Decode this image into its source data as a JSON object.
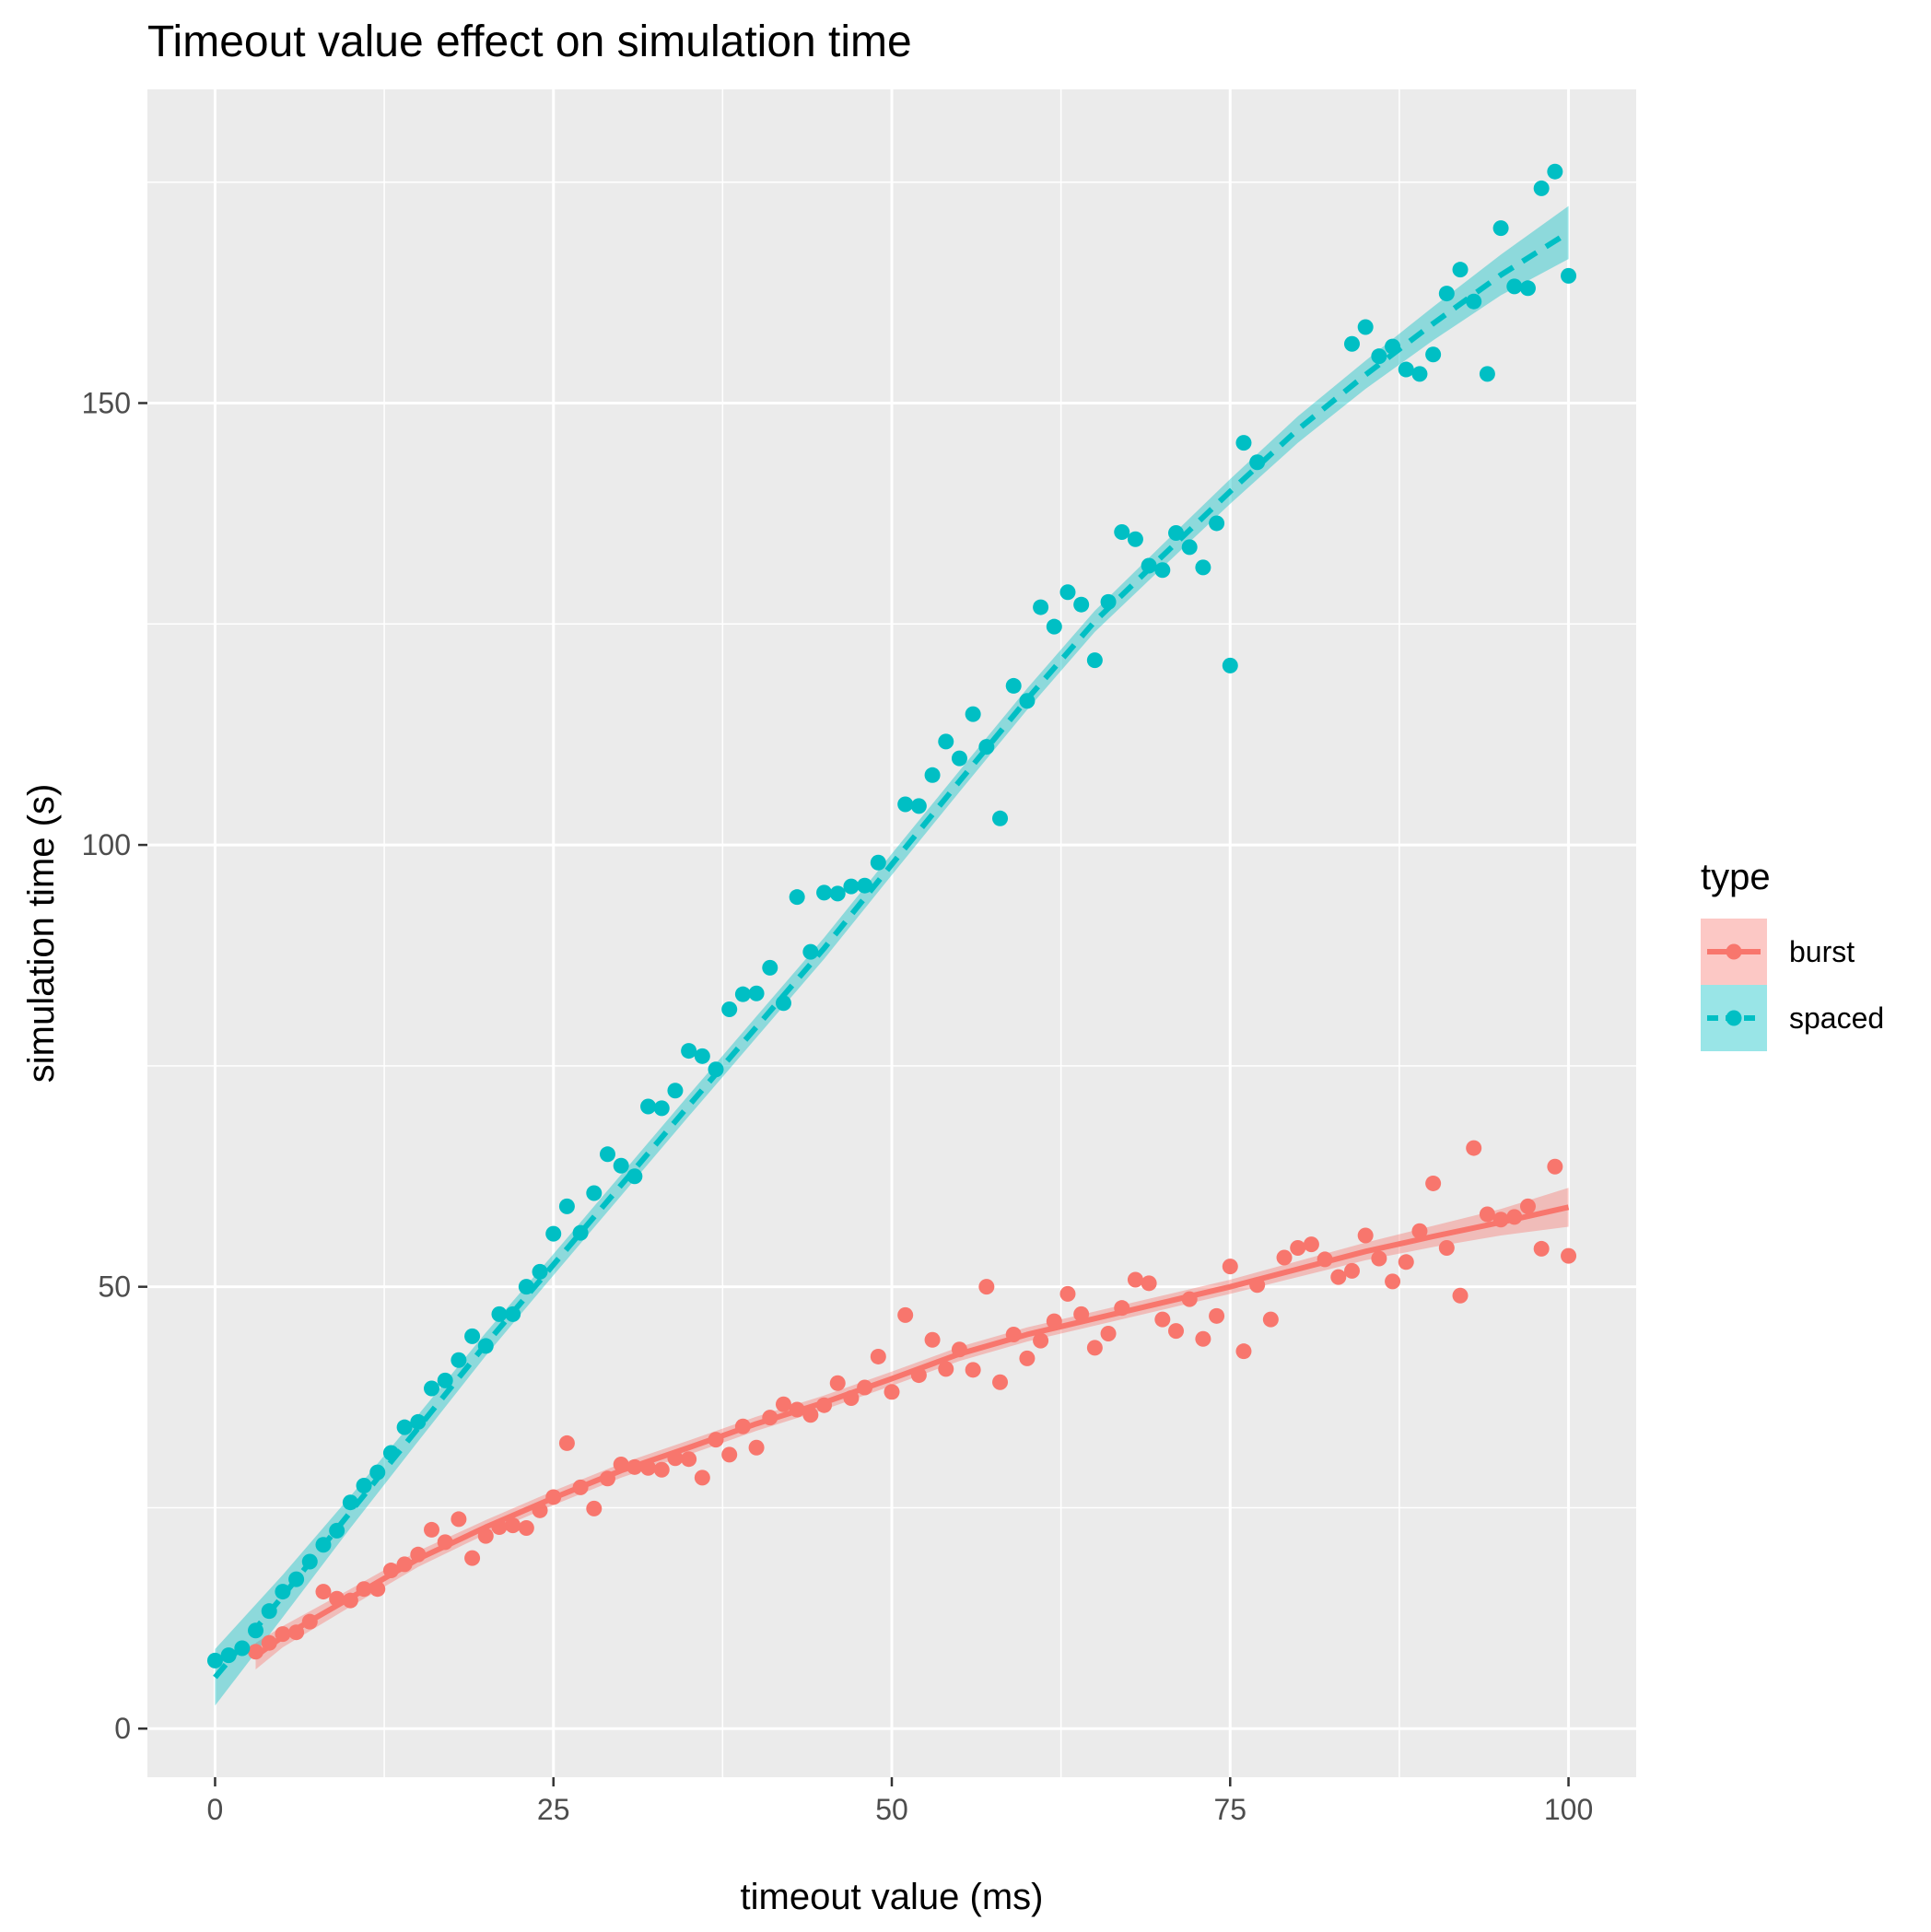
{
  "chart_data": {
    "type": "scatter",
    "title": "Timeout value effect on simulation time",
    "xlabel": "timeout value (ms)",
    "ylabel": "simulation time (s)",
    "xlim": [
      -5,
      105
    ],
    "ylim": [
      -5.5,
      185.5
    ],
    "x_ticks": [
      0,
      25,
      50,
      75,
      100
    ],
    "x_tick_labels": [
      "0",
      "25",
      "50",
      "75",
      "100"
    ],
    "y_ticks": [
      0,
      50,
      100,
      150
    ],
    "y_tick_labels": [
      "0",
      "50",
      "100",
      "150"
    ],
    "grid": true,
    "background": "#ebebeb",
    "legend": {
      "title": "type",
      "position": "right"
    },
    "series": [
      {
        "name": "burst",
        "color": "#f8766d",
        "line_style": "solid",
        "points": [
          [
            3,
            8.7
          ],
          [
            4,
            9.7
          ],
          [
            5,
            10.7
          ],
          [
            6,
            10.9
          ],
          [
            7,
            12.1
          ],
          [
            8,
            15.5
          ],
          [
            9,
            14.7
          ],
          [
            10,
            14.5
          ],
          [
            11,
            15.8
          ],
          [
            12,
            15.8
          ],
          [
            13,
            17.9
          ],
          [
            14,
            18.6
          ],
          [
            15,
            19.7
          ],
          [
            16,
            22.5
          ],
          [
            17,
            21.1
          ],
          [
            18,
            23.7
          ],
          [
            19,
            19.3
          ],
          [
            20,
            21.8
          ],
          [
            21,
            22.8
          ],
          [
            22,
            23
          ],
          [
            23,
            22.7
          ],
          [
            24,
            24.7
          ],
          [
            25,
            26.2
          ],
          [
            26,
            32.3
          ],
          [
            27,
            27.3
          ],
          [
            28,
            24.9
          ],
          [
            29,
            28.3
          ],
          [
            30,
            29.9
          ],
          [
            31,
            29.6
          ],
          [
            32,
            29.5
          ],
          [
            33,
            29.3
          ],
          [
            34,
            30.6
          ],
          [
            35,
            30.5
          ],
          [
            36,
            28.4
          ],
          [
            37,
            32.7
          ],
          [
            38,
            31
          ],
          [
            39,
            34.2
          ],
          [
            40,
            31.8
          ],
          [
            41,
            35.2
          ],
          [
            42,
            36.7
          ],
          [
            43,
            36.1
          ],
          [
            44,
            35.5
          ],
          [
            45,
            36.6
          ],
          [
            46,
            39.1
          ],
          [
            47,
            37.4
          ],
          [
            48,
            38.6
          ],
          [
            49,
            42.1
          ],
          [
            50,
            38.1
          ],
          [
            51,
            46.8
          ],
          [
            52,
            40
          ],
          [
            53,
            44
          ],
          [
            54,
            40.7
          ],
          [
            55,
            42.9
          ],
          [
            56,
            40.6
          ],
          [
            57,
            50
          ],
          [
            58,
            39.2
          ],
          [
            59,
            44.6
          ],
          [
            60,
            41.9
          ],
          [
            61,
            43.9
          ],
          [
            62,
            46.1
          ],
          [
            63,
            49.2
          ],
          [
            64,
            46.9
          ],
          [
            65,
            43.1
          ],
          [
            66,
            44.7
          ],
          [
            67,
            47.6
          ],
          [
            68,
            50.8
          ],
          [
            69,
            50.4
          ],
          [
            70,
            46.3
          ],
          [
            71,
            45
          ],
          [
            72,
            48.6
          ],
          [
            73,
            44.1
          ],
          [
            74,
            46.7
          ],
          [
            75,
            52.3
          ],
          [
            76,
            42.7
          ],
          [
            77,
            50.2
          ],
          [
            78,
            46.3
          ],
          [
            79,
            53.3
          ],
          [
            80,
            54.4
          ],
          [
            81,
            54.8
          ],
          [
            82,
            53.1
          ],
          [
            83,
            51.1
          ],
          [
            84,
            51.8
          ],
          [
            85,
            55.8
          ],
          [
            86,
            53.2
          ],
          [
            87,
            50.6
          ],
          [
            88,
            52.8
          ],
          [
            89,
            56.3
          ],
          [
            90,
            61.7
          ],
          [
            91,
            54.4
          ],
          [
            92,
            49
          ],
          [
            93,
            65.7
          ],
          [
            94,
            58.2
          ],
          [
            95,
            57.6
          ],
          [
            96,
            57.9
          ],
          [
            97,
            59.1
          ],
          [
            98,
            54.3
          ],
          [
            99,
            63.6
          ],
          [
            100,
            53.5
          ]
        ],
        "fit": [
          [
            3,
            8.2
          ],
          [
            5,
            10.4
          ],
          [
            10,
            14.8
          ],
          [
            15,
            19.2
          ],
          [
            20,
            22.8
          ],
          [
            25,
            26.1
          ],
          [
            30,
            29.2
          ],
          [
            35,
            31.8
          ],
          [
            40,
            34.5
          ],
          [
            45,
            36.9
          ],
          [
            50,
            39.6
          ],
          [
            55,
            42.4
          ],
          [
            60,
            44.6
          ],
          [
            65,
            46.4
          ],
          [
            70,
            48.2
          ],
          [
            75,
            50
          ],
          [
            80,
            52
          ],
          [
            85,
            54
          ],
          [
            90,
            55.7
          ],
          [
            95,
            57.3
          ],
          [
            100,
            59
          ]
        ],
        "fit_ci_halfwidth": [
          1.5,
          1.2,
          1.0,
          0.9,
          0.8,
          0.8,
          0.8,
          0.8,
          0.8,
          0.8,
          0.8,
          0.8,
          0.8,
          0.8,
          0.8,
          0.8,
          0.9,
          1.0,
          1.2,
          1.5,
          2.2
        ]
      },
      {
        "name": "spaced",
        "color": "#00bfc4",
        "line_style": "dashed",
        "points": [
          [
            0,
            7.7
          ],
          [
            1,
            8.3
          ],
          [
            2,
            9.1
          ],
          [
            3,
            11.1
          ],
          [
            4,
            13.3
          ],
          [
            5,
            15.5
          ],
          [
            6,
            16.9
          ],
          [
            7,
            18.9
          ],
          [
            8,
            20.8
          ],
          [
            9,
            22.4
          ],
          [
            10,
            25.6
          ],
          [
            11,
            27.5
          ],
          [
            12,
            29
          ],
          [
            13,
            31.2
          ],
          [
            14,
            34.1
          ],
          [
            15,
            34.7
          ],
          [
            16,
            38.5
          ],
          [
            17,
            39.4
          ],
          [
            18,
            41.7
          ],
          [
            19,
            44.4
          ],
          [
            20,
            43.3
          ],
          [
            21,
            46.9
          ],
          [
            22,
            46.9
          ],
          [
            23,
            50
          ],
          [
            24,
            51.7
          ],
          [
            25,
            56
          ],
          [
            26,
            59.1
          ],
          [
            27,
            56.1
          ],
          [
            28,
            60.6
          ],
          [
            29,
            65
          ],
          [
            30,
            63.7
          ],
          [
            31,
            62.5
          ],
          [
            32,
            70.4
          ],
          [
            33,
            70.2
          ],
          [
            34,
            72.2
          ],
          [
            35,
            76.7
          ],
          [
            36,
            76.1
          ],
          [
            37,
            74.6
          ],
          [
            38,
            81.4
          ],
          [
            39,
            83.1
          ],
          [
            40,
            83.2
          ],
          [
            41,
            86.1
          ],
          [
            42,
            82.1
          ],
          [
            43,
            94.1
          ],
          [
            44,
            87.9
          ],
          [
            45,
            94.6
          ],
          [
            46,
            94.5
          ],
          [
            47,
            95.3
          ],
          [
            48,
            95.4
          ],
          [
            49,
            98
          ],
          [
            51,
            104.6
          ],
          [
            52,
            104.4
          ],
          [
            53,
            107.9
          ],
          [
            54,
            111.7
          ],
          [
            55,
            109.8
          ],
          [
            56,
            114.8
          ],
          [
            57,
            111.1
          ],
          [
            58,
            103
          ],
          [
            59,
            118
          ],
          [
            60,
            116.3
          ],
          [
            61,
            126.9
          ],
          [
            62,
            124.7
          ],
          [
            63,
            128.6
          ],
          [
            64,
            127.2
          ],
          [
            65,
            120.9
          ],
          [
            66,
            127.5
          ],
          [
            67,
            135.4
          ],
          [
            68,
            134.6
          ],
          [
            69,
            131.6
          ],
          [
            70,
            131.1
          ],
          [
            71,
            135.3
          ],
          [
            72,
            133.7
          ],
          [
            73,
            131.4
          ],
          [
            74,
            136.4
          ],
          [
            75,
            120.3
          ],
          [
            76,
            145.5
          ],
          [
            77,
            143.3
          ],
          [
            84,
            156.7
          ],
          [
            85,
            158.6
          ],
          [
            86,
            155.3
          ],
          [
            87,
            156.4
          ],
          [
            88,
            153.8
          ],
          [
            89,
            153.3
          ],
          [
            90,
            155.5
          ],
          [
            91,
            162.4
          ],
          [
            92,
            165.1
          ],
          [
            93,
            161.5
          ],
          [
            94,
            153.3
          ],
          [
            95,
            169.8
          ],
          [
            96,
            163.2
          ],
          [
            97,
            163
          ],
          [
            98,
            174.3
          ],
          [
            99,
            176.2
          ],
          [
            100,
            164.4
          ]
        ],
        "fit": [
          [
            0,
            5.8
          ],
          [
            5,
            15
          ],
          [
            10,
            24.5
          ],
          [
            15,
            34
          ],
          [
            20,
            43.5
          ],
          [
            25,
            52.5
          ],
          [
            30,
            61.5
          ],
          [
            35,
            70.5
          ],
          [
            40,
            79.4
          ],
          [
            45,
            88.3
          ],
          [
            50,
            97.8
          ],
          [
            55,
            107.2
          ],
          [
            60,
            116.5
          ],
          [
            65,
            125.3
          ],
          [
            70,
            132.7
          ],
          [
            75,
            140
          ],
          [
            80,
            147
          ],
          [
            85,
            153.2
          ],
          [
            90,
            159
          ],
          [
            95,
            164.5
          ],
          [
            100,
            169.3
          ]
        ],
        "fit_ci_halfwidth": [
          3.2,
          2.4,
          1.8,
          1.5,
          1.3,
          1.2,
          1.2,
          1.2,
          1.2,
          1.2,
          1.2,
          1.2,
          1.2,
          1.2,
          1.3,
          1.4,
          1.5,
          1.6,
          1.9,
          2.3,
          3.0
        ]
      }
    ]
  }
}
